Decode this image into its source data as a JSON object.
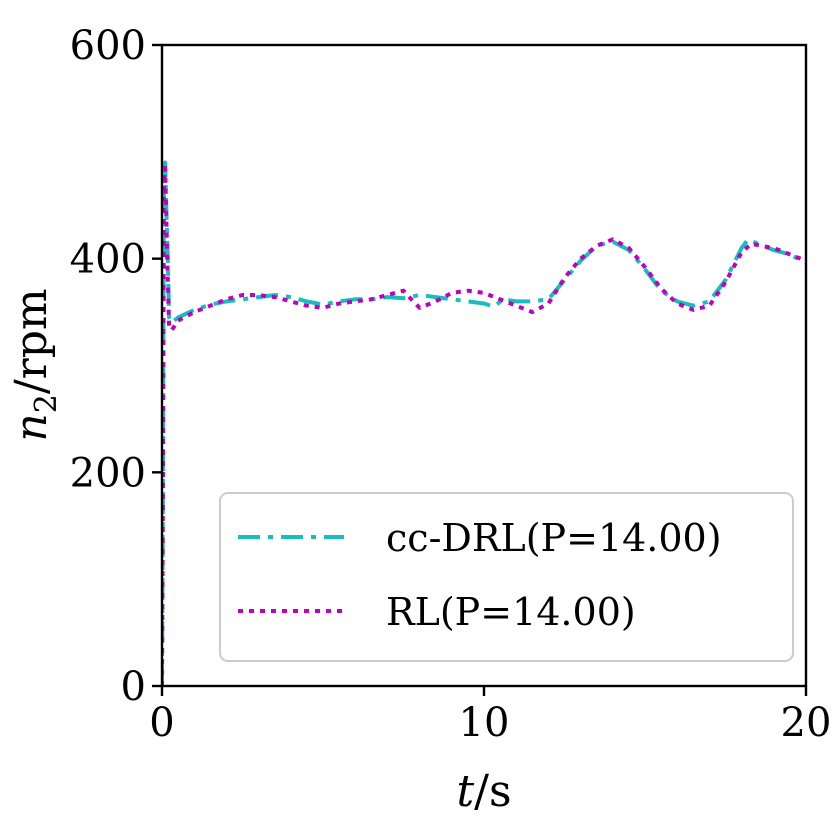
{
  "chart_data": {
    "type": "line",
    "xlabel_var": "t",
    "xlabel_unit": "s",
    "ylabel_var": "n",
    "ylabel_sub": "2",
    "ylabel_unit": "rpm",
    "xlim": [
      0,
      20
    ],
    "ylim": [
      0,
      600
    ],
    "x_ticks": [
      0,
      10,
      20
    ],
    "y_ticks": [
      0,
      200,
      400,
      600
    ],
    "grid": false,
    "legend_position": "lower-right",
    "series": [
      {
        "name": "cc-DRL(P=14.00)",
        "color": "#17bebe",
        "style": "dashdot",
        "points": [
          [
            0,
            0
          ],
          [
            0.03,
            200
          ],
          [
            0.06,
            480
          ],
          [
            0.1,
            490
          ],
          [
            0.14,
            440
          ],
          [
            0.18,
            400
          ],
          [
            0.22,
            345
          ],
          [
            0.3,
            340
          ],
          [
            0.5,
            345
          ],
          [
            1.0,
            352
          ],
          [
            1.5,
            357
          ],
          [
            2.0,
            360
          ],
          [
            2.5,
            362
          ],
          [
            3.0,
            364
          ],
          [
            3.5,
            366
          ],
          [
            4.0,
            364
          ],
          [
            4.5,
            360
          ],
          [
            5.0,
            357
          ],
          [
            5.5,
            360
          ],
          [
            6.0,
            362
          ],
          [
            6.5,
            362
          ],
          [
            7.0,
            364
          ],
          [
            7.5,
            363
          ],
          [
            8.0,
            366
          ],
          [
            8.5,
            364
          ],
          [
            9.0,
            362
          ],
          [
            9.5,
            360
          ],
          [
            10.0,
            358
          ],
          [
            10.3,
            355
          ],
          [
            10.6,
            362
          ],
          [
            11.0,
            360
          ],
          [
            11.5,
            360
          ],
          [
            12.0,
            362
          ],
          [
            12.5,
            380
          ],
          [
            13.0,
            398
          ],
          [
            13.5,
            412
          ],
          [
            14.0,
            416
          ],
          [
            14.5,
            408
          ],
          [
            15.0,
            390
          ],
          [
            15.5,
            370
          ],
          [
            16.0,
            360
          ],
          [
            16.5,
            356
          ],
          [
            17.0,
            360
          ],
          [
            17.5,
            380
          ],
          [
            18.0,
            410
          ],
          [
            18.2,
            418
          ],
          [
            18.5,
            414
          ],
          [
            19.0,
            408
          ],
          [
            19.5,
            404
          ],
          [
            20.0,
            396
          ]
        ]
      },
      {
        "name": "RL(P=14.00)",
        "color": "#bf00bf",
        "style": "dotted",
        "points": [
          [
            0,
            0
          ],
          [
            0.03,
            200
          ],
          [
            0.06,
            470
          ],
          [
            0.1,
            485
          ],
          [
            0.14,
            430
          ],
          [
            0.18,
            380
          ],
          [
            0.22,
            336
          ],
          [
            0.3,
            333
          ],
          [
            0.5,
            342
          ],
          [
            1.0,
            350
          ],
          [
            1.5,
            356
          ],
          [
            2.0,
            362
          ],
          [
            2.5,
            366
          ],
          [
            3.0,
            366
          ],
          [
            3.5,
            364
          ],
          [
            4.0,
            360
          ],
          [
            4.5,
            356
          ],
          [
            5.0,
            354
          ],
          [
            5.5,
            358
          ],
          [
            6.0,
            360
          ],
          [
            6.5,
            362
          ],
          [
            7.0,
            366
          ],
          [
            7.5,
            370
          ],
          [
            7.8,
            360
          ],
          [
            8.0,
            354
          ],
          [
            8.5,
            360
          ],
          [
            9.0,
            368
          ],
          [
            9.5,
            370
          ],
          [
            10.0,
            368
          ],
          [
            10.5,
            362
          ],
          [
            11.0,
            356
          ],
          [
            11.5,
            350
          ],
          [
            12.0,
            358
          ],
          [
            12.5,
            382
          ],
          [
            13.0,
            400
          ],
          [
            13.5,
            412
          ],
          [
            14.0,
            418
          ],
          [
            14.5,
            410
          ],
          [
            15.0,
            392
          ],
          [
            15.5,
            372
          ],
          [
            16.0,
            358
          ],
          [
            16.5,
            352
          ],
          [
            17.0,
            356
          ],
          [
            17.5,
            378
          ],
          [
            18.0,
            406
          ],
          [
            18.3,
            414
          ],
          [
            18.6,
            412
          ],
          [
            19.0,
            410
          ],
          [
            19.5,
            404
          ],
          [
            20.0,
            398
          ]
        ]
      }
    ]
  }
}
